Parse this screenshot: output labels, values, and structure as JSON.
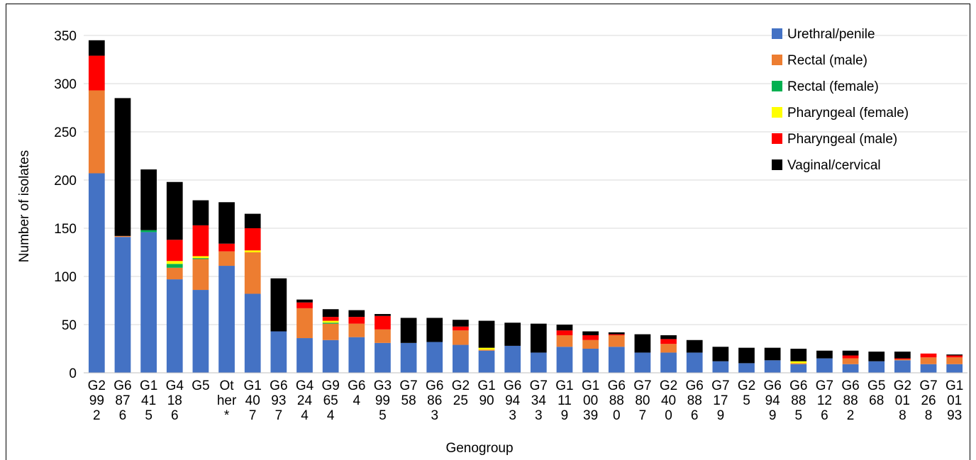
{
  "chart_data": {
    "type": "bar",
    "stacked": true,
    "xlabel": "Genogroup",
    "ylabel": "Number of isolates",
    "ylim": [
      0,
      350
    ],
    "yticks": [
      0,
      50,
      100,
      150,
      200,
      250,
      300,
      350
    ],
    "grid": "horizontal",
    "legend_position": "top-right",
    "categories": [
      [
        "G2",
        "99",
        "2"
      ],
      [
        "G6",
        "87",
        "6"
      ],
      [
        "G1",
        "41",
        "5"
      ],
      [
        "G4",
        "18",
        "6"
      ],
      [
        "G5"
      ],
      [
        "Ot",
        "her",
        "*"
      ],
      [
        "G1",
        "40",
        "7"
      ],
      [
        "G6",
        "93",
        "7"
      ],
      [
        "G4",
        "24",
        "4"
      ],
      [
        "G9",
        "65",
        "4"
      ],
      [
        "G6",
        "4"
      ],
      [
        "G3",
        "99",
        "5"
      ],
      [
        "G7",
        "58"
      ],
      [
        "G6",
        "86",
        "3"
      ],
      [
        "G2",
        "25"
      ],
      [
        "G1",
        "90"
      ],
      [
        "G6",
        "94",
        "3"
      ],
      [
        "G7",
        "34",
        "3"
      ],
      [
        "G1",
        "11",
        "9"
      ],
      [
        "G1",
        "00",
        "39"
      ],
      [
        "G6",
        "88",
        "0"
      ],
      [
        "G7",
        "80",
        "7"
      ],
      [
        "G2",
        "40",
        "0"
      ],
      [
        "G6",
        "88",
        "6"
      ],
      [
        "G7",
        "17",
        "9"
      ],
      [
        "G2",
        "5"
      ],
      [
        "G6",
        "94",
        "9"
      ],
      [
        "G6",
        "88",
        "5"
      ],
      [
        "G7",
        "12",
        "6"
      ],
      [
        "G6",
        "88",
        "2"
      ],
      [
        "G5",
        "68"
      ],
      [
        "G2",
        "01",
        "8"
      ],
      [
        "G7",
        "26",
        "8"
      ],
      [
        "G1",
        "01",
        "93"
      ]
    ],
    "series": [
      {
        "name": "Urethral/penile",
        "color": "#4472C4",
        "values": [
          207,
          141,
          146,
          97,
          86,
          111,
          82,
          43,
          36,
          34,
          37,
          31,
          31,
          32,
          29,
          23,
          28,
          21,
          27,
          25,
          27,
          21,
          21,
          21,
          12,
          10,
          13,
          9,
          15,
          9,
          12,
          13,
          9,
          9
        ]
      },
      {
        "name": "Rectal (male)",
        "color": "#ED7D31",
        "values": [
          86,
          1,
          0,
          12,
          32,
          15,
          43,
          0,
          31,
          17,
          14,
          14,
          0,
          0,
          15,
          1,
          0,
          0,
          12,
          9,
          12,
          0,
          9,
          0,
          0,
          0,
          0,
          1,
          0,
          6,
          0,
          1,
          7,
          7
        ]
      },
      {
        "name": "Rectal (female)",
        "color": "#00B050",
        "values": [
          0,
          0,
          2,
          4,
          1,
          0,
          0,
          0,
          0,
          1,
          0,
          0,
          0,
          0,
          0,
          0,
          0,
          0,
          0,
          0,
          0,
          0,
          0,
          0,
          0,
          0,
          0,
          0,
          0,
          0,
          0,
          0,
          0,
          0
        ]
      },
      {
        "name": "Pharyngeal (female)",
        "color": "#FFFF00",
        "values": [
          0,
          0,
          0,
          3,
          2,
          0,
          2,
          0,
          0,
          2,
          0,
          0,
          0,
          0,
          0,
          2,
          0,
          0,
          0,
          0,
          0,
          0,
          0,
          0,
          0,
          0,
          0,
          2,
          0,
          0,
          0,
          0,
          0,
          0
        ]
      },
      {
        "name": "Pharyngeal (male)",
        "color": "#FF0000",
        "values": [
          36,
          0,
          0,
          22,
          32,
          8,
          23,
          0,
          6,
          4,
          7,
          14,
          0,
          0,
          4,
          0,
          0,
          0,
          5,
          5,
          1,
          0,
          5,
          0,
          0,
          0,
          0,
          0,
          0,
          3,
          0,
          1,
          4,
          2
        ]
      },
      {
        "name": "Vaginal/cervical",
        "color": "#000000",
        "values": [
          16,
          143,
          63,
          60,
          26,
          43,
          15,
          55,
          3,
          8,
          7,
          2,
          26,
          25,
          7,
          28,
          24,
          30,
          6,
          4,
          2,
          19,
          4,
          13,
          15,
          16,
          13,
          13,
          8,
          5,
          10,
          7,
          0,
          1
        ]
      }
    ]
  }
}
